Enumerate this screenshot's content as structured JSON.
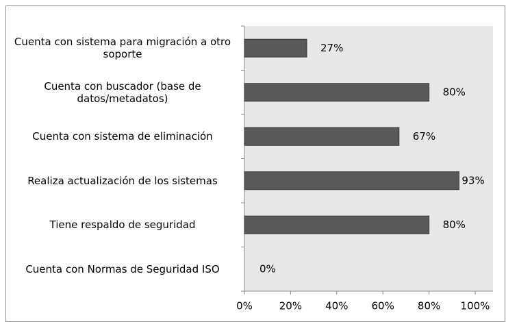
{
  "chart_data": {
    "type": "barh",
    "categories": [
      "Cuenta con sistema para migración a otro soporte",
      "Cuenta con buscador (base de datos/metadatos)",
      "Cuenta con sistema de eliminación",
      "Realiza actualización de los sistemas",
      "Tiene respaldo de seguridad",
      "Cuenta con Normas de Seguridad ISO"
    ],
    "values": [
      27,
      80,
      67,
      93,
      80,
      0
    ],
    "value_labels": [
      "27%",
      "80%",
      "67%",
      "93%",
      "80%",
      "0%"
    ],
    "color": "#595959",
    "xlim": [
      0,
      100
    ],
    "xticks": [
      {
        "value": 0,
        "label": "0%"
      },
      {
        "value": 20,
        "label": "20%"
      },
      {
        "value": 40,
        "label": "40%"
      },
      {
        "value": 60,
        "label": "60%"
      },
      {
        "value": 80,
        "label": "80%"
      },
      {
        "value": 100,
        "label": "100%"
      }
    ]
  }
}
